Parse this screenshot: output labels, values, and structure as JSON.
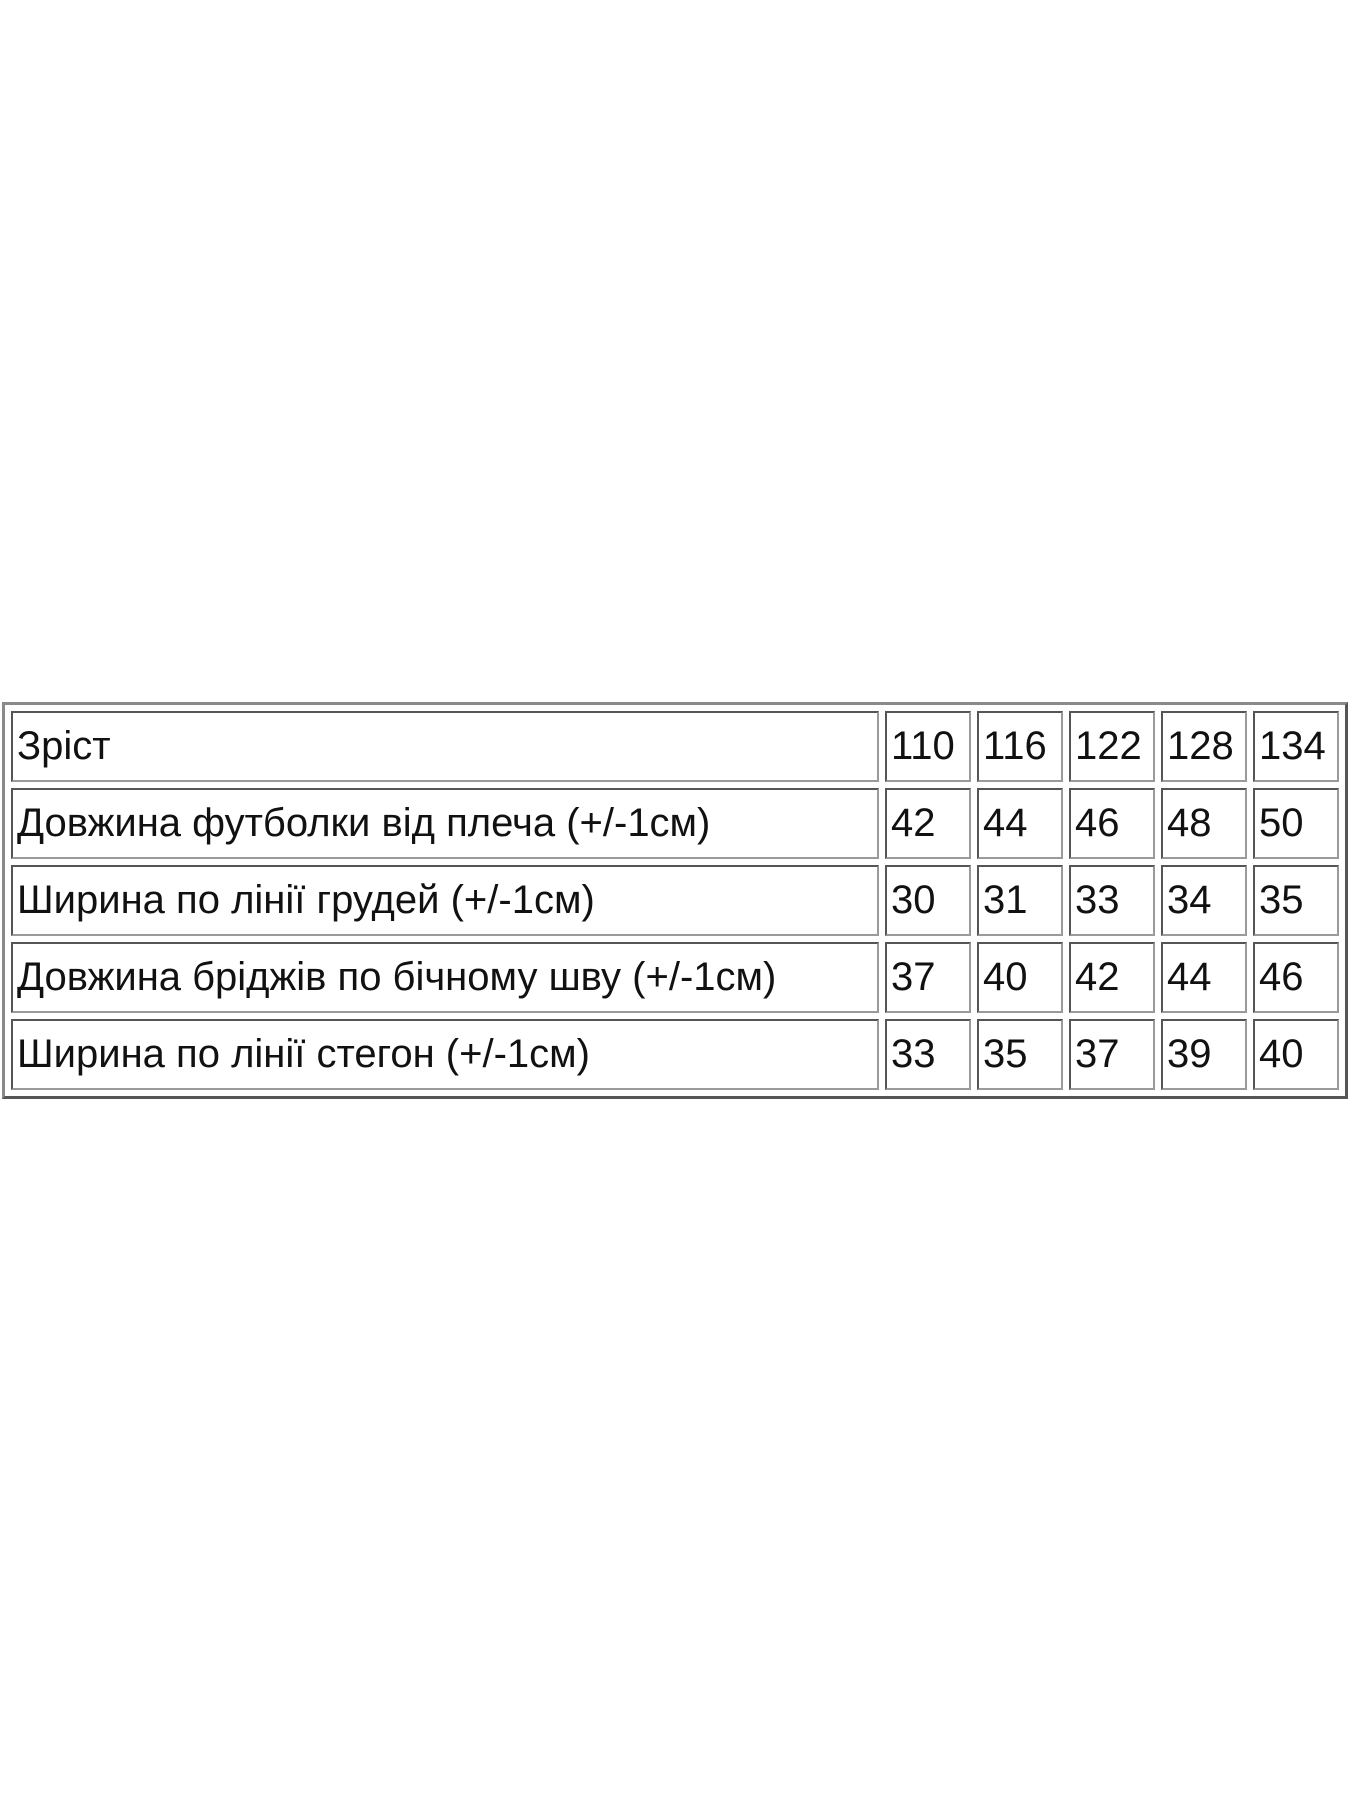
{
  "table": {
    "rows": [
      [
        "Зріст",
        110,
        116,
        122,
        128,
        134
      ],
      [
        "Довжина футболки від плеча (+/-1см)",
        42,
        44,
        46,
        48,
        50
      ],
      [
        "Ширина по лінії грудей (+/-1см)",
        30,
        31,
        33,
        34,
        35
      ],
      [
        "Довжина бріджів по бічному шву (+/-1см)",
        37,
        40,
        42,
        44,
        46
      ],
      [
        "Ширина по лінії стегон (+/-1см)",
        33,
        35,
        37,
        39,
        40
      ]
    ]
  }
}
